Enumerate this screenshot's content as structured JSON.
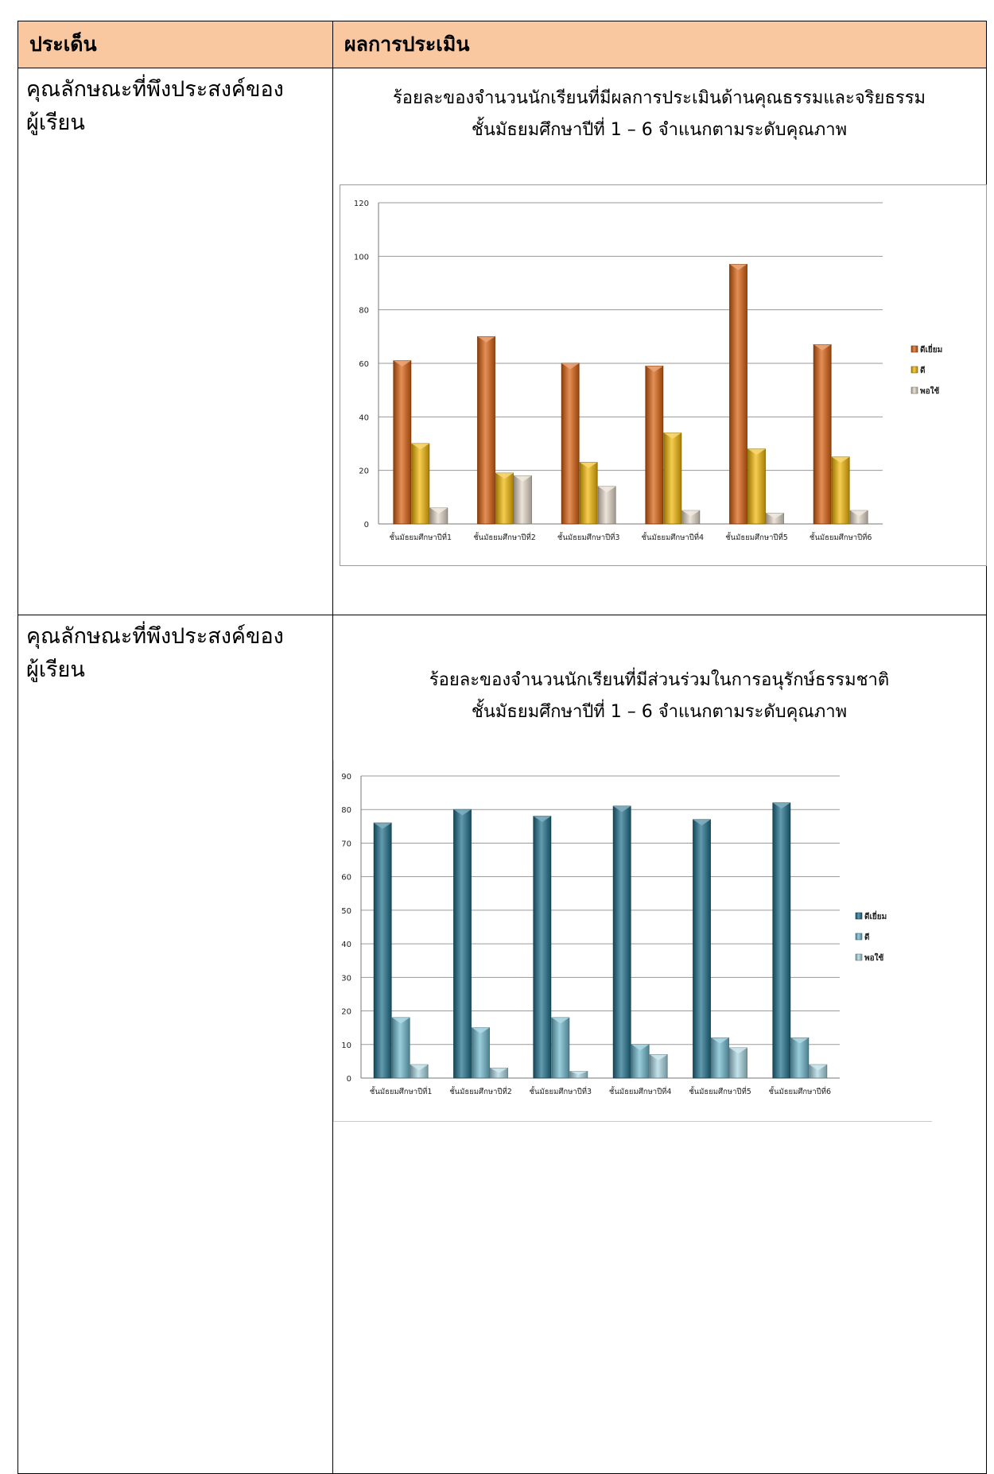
{
  "table": {
    "header_issue": "ประเด็น",
    "header_result": "ผลการประเมิน",
    "row1_issue_line1": "คุณลักษณะที่พึงประสงค์ของ",
    "row1_issue_line2": "ผู้เรียน",
    "row2_issue_line1": "คุณลักษณะที่พึงประสงค์ของ",
    "row2_issue_line2": "ผู้เรียน"
  },
  "chart_data": [
    {
      "type": "bar",
      "title_line1": "ร้อยละของจำนวนนักเรียนที่มีผลการประเมินด้านคุณธรรมและจริยธรรม",
      "title_line2": "ชั้นมัธยมศึกษาปีที่ 1 – 6 จำแนกตามระดับคุณภาพ",
      "categories": [
        "ชั้นมัธยมศึกษาปีที่1",
        "ชั้นมัธยมศึกษาปีที่2",
        "ชั้นมัธยมศึกษาปีที่3",
        "ชั้นมัธยมศึกษาปีที่4",
        "ชั้นมัธยมศึกษาปีที่5",
        "ชั้นมัธยมศึกษาปีที่6"
      ],
      "series": [
        {
          "name": "ดีเยี่ยม",
          "color": "#d95f0e",
          "values": [
            61,
            70,
            60,
            59,
            97,
            67
          ]
        },
        {
          "name": "ดี",
          "color": "#f2b705",
          "values": [
            30,
            19,
            23,
            34,
            28,
            25
          ]
        },
        {
          "name": "พอใช้",
          "color": "#e4d8c8",
          "values": [
            6,
            18,
            14,
            5,
            4,
            5
          ]
        }
      ],
      "ylim": [
        0,
        120
      ],
      "yticks": [
        0,
        20,
        40,
        60,
        80,
        100,
        120
      ],
      "grid": true,
      "legend": "right"
    },
    {
      "type": "bar",
      "title_line1": "ร้อยละของจำนวนนักเรียนที่มีส่วนร่วมในการอนุรักษ์ธรรมชาติ",
      "title_line2": "ชั้นมัธยมศึกษาปีที่ 1 – 6 จำแนกตามระดับคุณภาพ",
      "categories": [
        "ชั้นมัธยมศึกษาปีที่1",
        "ชั้นมัธยมศึกษาปีที่2",
        "ชั้นมัธยมศึกษาปีที่3",
        "ชั้นมัธยมศึกษาปีที่4",
        "ชั้นมัธยมศึกษาปีที่5",
        "ชั้นมัธยมศึกษาปีที่6"
      ],
      "series": [
        {
          "name": "ดีเยี่ยม",
          "color": "#1f6f8b",
          "values": [
            76,
            80,
            78,
            81,
            77,
            82
          ]
        },
        {
          "name": "ดี",
          "color": "#6fb8cc",
          "values": [
            18,
            15,
            18,
            10,
            12,
            12
          ]
        },
        {
          "name": "พอใช้",
          "color": "#a9d6e2",
          "values": [
            4,
            3,
            2,
            7,
            9,
            4
          ]
        }
      ],
      "ylim": [
        0,
        90
      ],
      "yticks": [
        0,
        10,
        20,
        30,
        40,
        50,
        60,
        70,
        80,
        90
      ],
      "grid": true,
      "legend": "right"
    }
  ]
}
